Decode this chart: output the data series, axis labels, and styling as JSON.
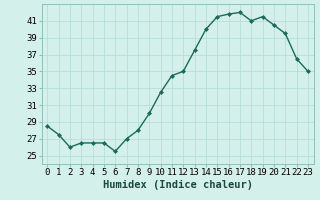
{
  "x": [
    0,
    1,
    2,
    3,
    4,
    5,
    6,
    7,
    8,
    9,
    10,
    11,
    12,
    13,
    14,
    15,
    16,
    17,
    18,
    19,
    20,
    21,
    22,
    23
  ],
  "y": [
    28.5,
    27.5,
    26.0,
    26.5,
    26.5,
    26.5,
    25.5,
    27.0,
    28.0,
    30.0,
    32.5,
    34.5,
    35.0,
    37.5,
    40.0,
    41.5,
    41.8,
    42.0,
    41.0,
    41.5,
    40.5,
    39.5,
    36.5,
    35.0
  ],
  "xlabel": "Humidex (Indice chaleur)",
  "line_color": "#1a6b5a",
  "bg_color": "#d4f0eb",
  "grid_color": "#b8ddd8",
  "ylim": [
    24,
    43
  ],
  "xlim": [
    -0.5,
    23.5
  ],
  "yticks": [
    25,
    27,
    29,
    31,
    33,
    35,
    37,
    39,
    41
  ],
  "xticks": [
    0,
    1,
    2,
    3,
    4,
    5,
    6,
    7,
    8,
    9,
    10,
    11,
    12,
    13,
    14,
    15,
    16,
    17,
    18,
    19,
    20,
    21,
    22,
    23
  ],
  "markersize": 2.0,
  "linewidth": 1.0,
  "xlabel_fontsize": 7.5,
  "tick_fontsize": 6.5
}
